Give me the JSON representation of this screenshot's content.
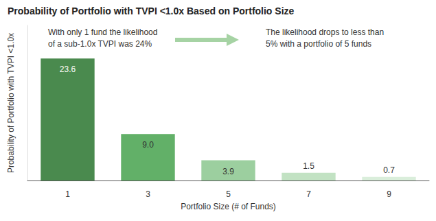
{
  "chart_data": {
    "type": "bar",
    "title": "Probability of Portfolio with TVPI <1.0x Based on Portfolio Size",
    "x_label": "Portfolio Size (# of Funds)",
    "y_label": "Probability of Portfolio with TVPI <1.0x",
    "categories": [
      "1",
      "3",
      "5",
      "7",
      "9"
    ],
    "values": [
      23.6,
      9.0,
      3.9,
      1.5,
      0.7
    ],
    "value_labels": [
      "23.6",
      "9.0",
      "3.9",
      "1.5",
      "0.7"
    ],
    "colors": [
      "#4a8a4e",
      "#62b068",
      "#9ccf9f",
      "#c2e2c3",
      "#daeedb"
    ],
    "ylim": [
      0,
      30
    ],
    "grid": false,
    "data_labels": true,
    "tick_labels": "x",
    "annotations": [
      [
        "With only 1 fund the likelihood",
        "of a sub-1.0x TVPI was 24%"
      ],
      [
        "The likelihood drops to less than",
        "5% with a portfolio of 5 funds"
      ]
    ]
  }
}
